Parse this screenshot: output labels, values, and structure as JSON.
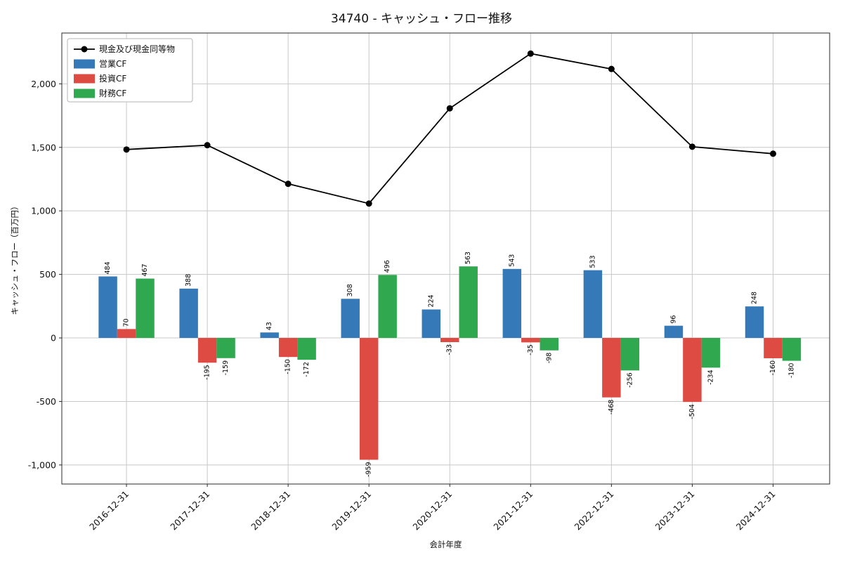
{
  "chart_data": {
    "type": "bar",
    "overlay": "line",
    "title": "34740 - キャッシュ・フロー推移",
    "xlabel": "会計年度",
    "ylabel": "キャッシュ・フロー（百万円）",
    "categories": [
      "2016-12-31",
      "2017-12-31",
      "2018-12-31",
      "2019-12-31",
      "2020-12-31",
      "2021-12-31",
      "2022-12-31",
      "2023-12-31",
      "2024-12-31"
    ],
    "bar_series": [
      {
        "name": "営業CF",
        "color": "#3579b8",
        "values": [
          484,
          388,
          43,
          308,
          224,
          543,
          533,
          96,
          248
        ]
      },
      {
        "name": "投資CF",
        "color": "#dd4b43",
        "values": [
          70,
          -195,
          -150,
          -959,
          -33,
          -35,
          -468,
          -504,
          -160
        ]
      },
      {
        "name": "財務CF",
        "color": "#2fa84f",
        "values": [
          467,
          -159,
          -172,
          496,
          563,
          -98,
          -256,
          -234,
          -180
        ]
      }
    ],
    "line_series": {
      "name": "現金及び現金同等物",
      "color": "#000000",
      "marker": "circle",
      "values": [
        1483,
        1517,
        1213,
        1058,
        1807,
        2238,
        2117,
        1505,
        1450
      ]
    },
    "ylim": [
      -1150,
      2400
    ],
    "yticks": [
      -1000,
      -500,
      0,
      500,
      1000,
      1500,
      2000
    ],
    "grid": true,
    "legend_position": "upper-left",
    "legend_entries": [
      "現金及び現金同等物",
      "営業CF",
      "投資CF",
      "財務CF"
    ],
    "colors": {
      "grid": "#c8c8c8",
      "spine": "#2a2a2a",
      "text": "#111111",
      "legend_border": "#b5b5b5"
    }
  }
}
